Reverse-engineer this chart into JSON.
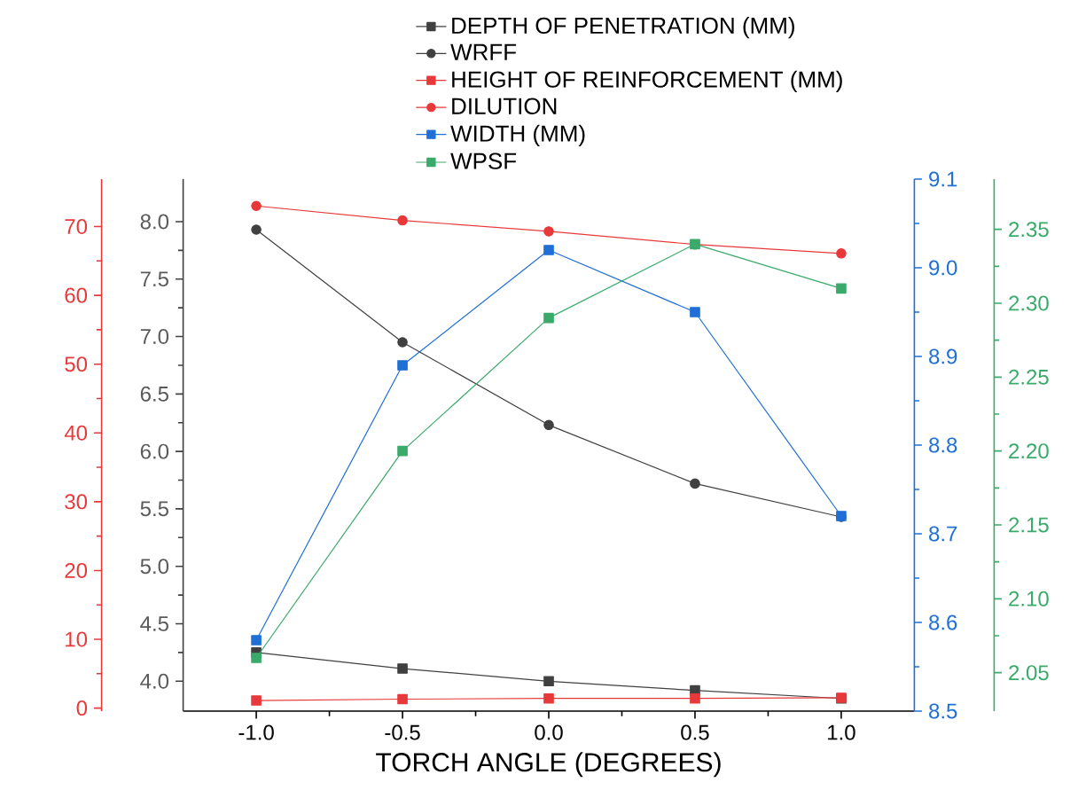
{
  "chart_data": [
    {
      "type": "line",
      "xlabel": "TORCH ANGLE (DEGREES)",
      "x": [
        -1,
        -0.5,
        0,
        0.5,
        1
      ],
      "xlim": [
        -1.25,
        1.25
      ],
      "xticks": [
        {
          "value": -1,
          "label": "-1.0"
        },
        {
          "value": -0.5,
          "label": "-0.5"
        },
        {
          "value": 0,
          "label": "0.0"
        },
        {
          "value": 0.5,
          "label": "0.5"
        },
        {
          "value": 1,
          "label": "1.0"
        }
      ],
      "ylim": [
        3.74,
        8.37
      ],
      "yticks": [
        {
          "value": 4,
          "label": "4.0"
        },
        4.5,
        {
          "value": 5,
          "label": "5.0"
        },
        5.5,
        {
          "value": 6,
          "label": "6.0"
        },
        6.5,
        {
          "value": 7,
          "label": "7.0"
        },
        7.5,
        {
          "value": 8,
          "label": "8.0"
        }
      ],
      "y3lim": [
        -0.44,
        76.9
      ],
      "y3ticks": [
        0,
        10,
        20,
        30,
        40,
        50,
        60,
        70
      ],
      "y2lim": [
        8.5,
        9.1
      ],
      "y2ticks": [
        8.5,
        8.6,
        8.7,
        8.8,
        8.9,
        {
          "value": 9.0,
          "label": "9.0"
        },
        9.1
      ],
      "legend": "top",
      "series": [
        {
          "name": "DEPTH OF PENETRATION (MM)",
          "color": "#404040",
          "marker": "square",
          "values": [
            4.25,
            4.11,
            4.0,
            3.92,
            3.85
          ]
        },
        {
          "name": "WRFF",
          "color": "#404040",
          "marker": "circle",
          "values": [
            7.93,
            6.95,
            6.23,
            5.72,
            5.43
          ]
        },
        {
          "name": "HEIGHT OF REINFORCEMENT (MM)",
          "color": "#e8393a",
          "marker": "square",
          "axis": "y3",
          "values": [
            1.1,
            1.3,
            1.4,
            1.4,
            1.5
          ]
        },
        {
          "name": "DILUTION",
          "color": "#e8393a",
          "marker": "circle",
          "axis": "y3",
          "values": [
            73.0,
            70.9,
            69.3,
            67.4,
            66.1
          ]
        },
        {
          "name": "WIDTH (MM)",
          "color": "#1f6fd6",
          "marker": "square",
          "axis": "y2",
          "values": [
            8.58,
            8.89,
            9.02,
            8.95,
            8.72
          ]
        }
      ]
    },
    {
      "type": "line",
      "x": [
        -1,
        -0.5,
        0,
        0.5,
        1
      ],
      "xlim": [
        -1.25,
        1.25
      ],
      "ylim": [
        2.024,
        2.384
      ],
      "yticks": [
        2.05,
        {
          "value": 2.1,
          "label": "2.10"
        },
        2.15,
        {
          "value": 2.2,
          "label": "2.20"
        },
        2.25,
        {
          "value": 2.3,
          "label": "2.30"
        },
        2.35
      ],
      "tick_labels": "y",
      "legend": "top",
      "series": [
        {
          "name": "WPSF",
          "color": "#3aaa6a",
          "marker": "square",
          "values": [
            2.06,
            2.2,
            2.29,
            2.34,
            2.31
          ]
        }
      ]
    }
  ]
}
